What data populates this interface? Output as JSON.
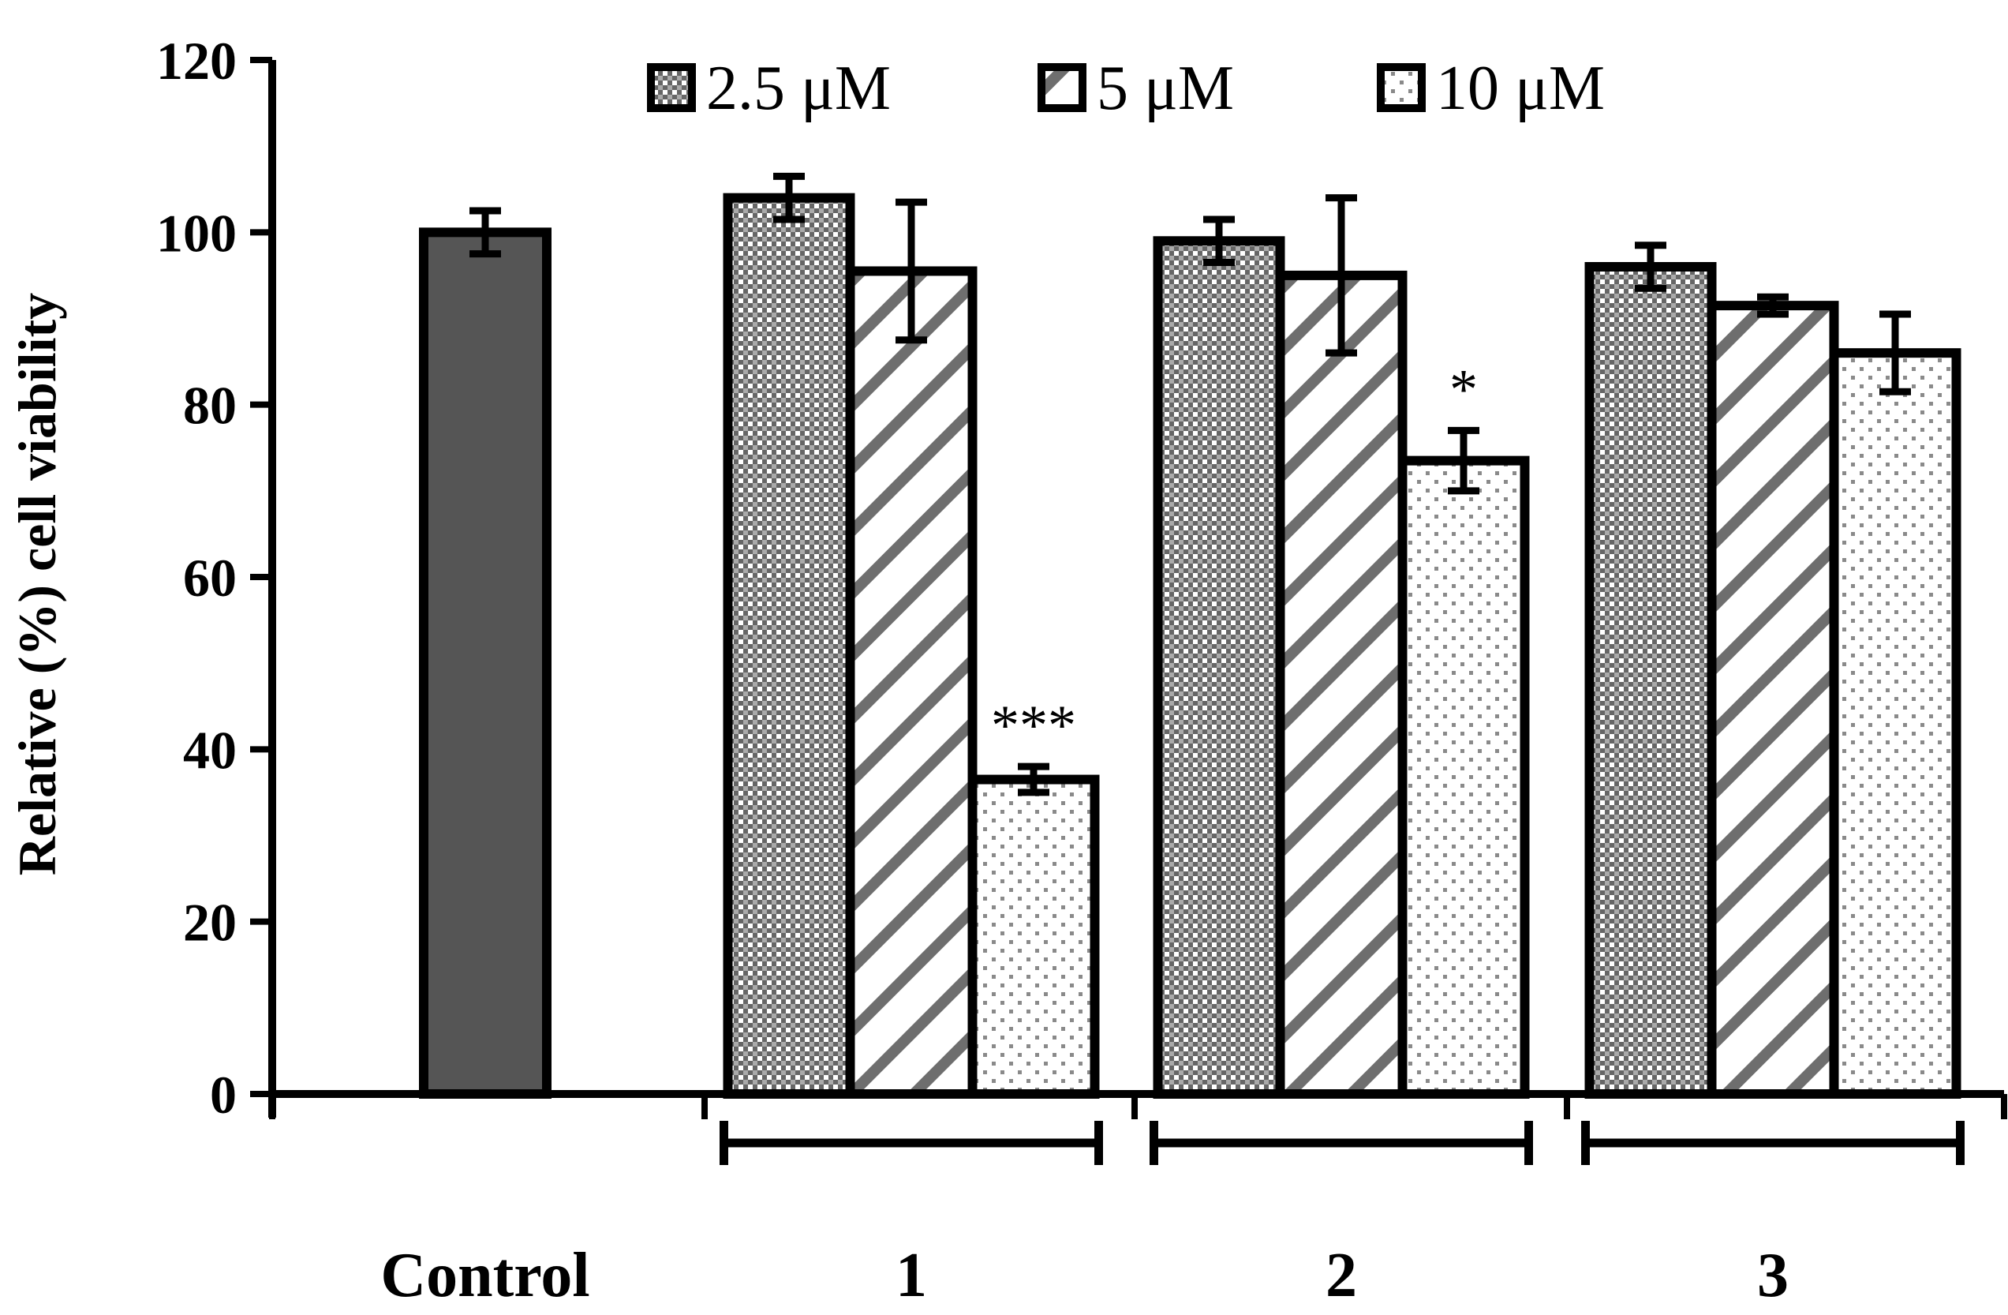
{
  "chart_data": {
    "type": "bar",
    "title": "",
    "xlabel": "",
    "ylabel": "Relative (%) cell viability",
    "ylim": [
      0,
      120
    ],
    "yticks": [
      0,
      20,
      40,
      60,
      80,
      100,
      120
    ],
    "grid": false,
    "legend_position": "top",
    "colors": {
      "control": "#555555",
      "stroke": "#000000",
      "pattern_ink": "#777777"
    },
    "control": {
      "label": "Control",
      "value": 100,
      "error": 2.5
    },
    "groups": [
      "1",
      "2",
      "3"
    ],
    "series": [
      {
        "name": "2.5 μM",
        "pattern": "checker",
        "values": [
          104,
          99,
          96
        ],
        "errors": [
          2.5,
          2.5,
          2.5
        ]
      },
      {
        "name": "5 μM",
        "pattern": "diagonal",
        "values": [
          95.5,
          95,
          91.5
        ],
        "errors": [
          8,
          9,
          1
        ]
      },
      {
        "name": "10 μM",
        "pattern": "dots",
        "values": [
          36.5,
          73.5,
          86
        ],
        "errors": [
          1.5,
          3.5,
          4.5
        ]
      }
    ],
    "annotations": [
      {
        "group": 0,
        "series": 2,
        "text": "***"
      },
      {
        "group": 1,
        "series": 2,
        "text": "*"
      }
    ]
  }
}
